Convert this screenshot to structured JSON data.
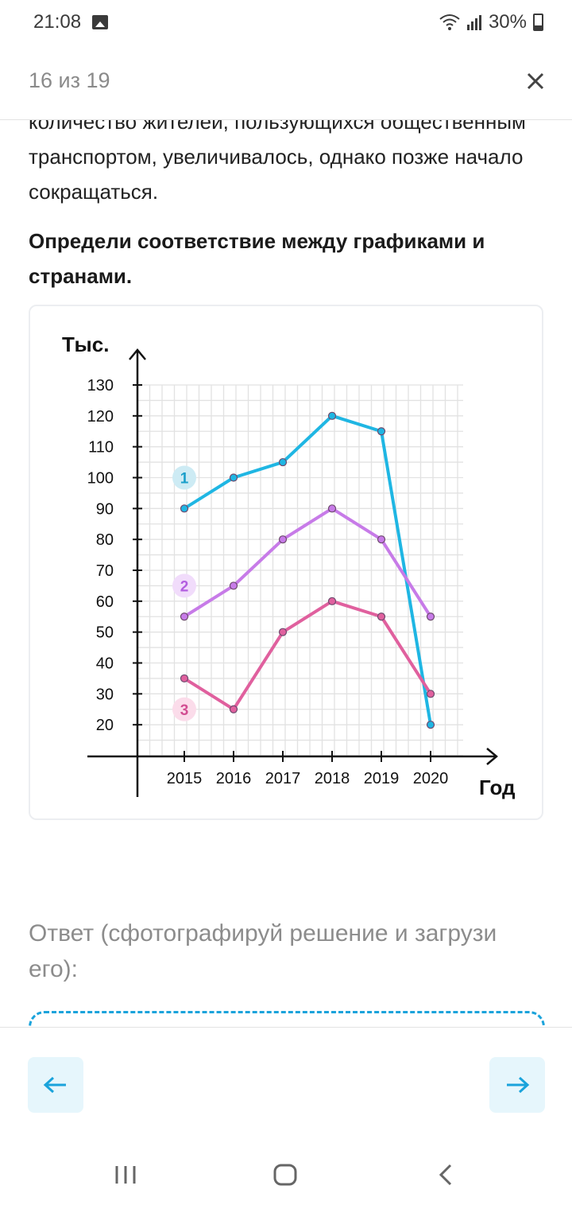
{
  "status_bar": {
    "time": "21:08",
    "battery": "30%",
    "icons": [
      "gallery-icon",
      "wifi-icon",
      "signal-icon",
      "battery-icon"
    ]
  },
  "header": {
    "counter": "16 из 19",
    "close_icon": "close-icon"
  },
  "question": {
    "paragraph_clipped": "количество жителей, пользующихся общественным транспортом, увеличивалось, однако позже начало сокращаться.",
    "task": "Определи соответствие между графиками и странами."
  },
  "chart_data": {
    "type": "line",
    "ylabel": "Тыс.",
    "xlabel": "Год",
    "x": [
      2015,
      2016,
      2017,
      2018,
      2019,
      2020
    ],
    "x_tick_labels": [
      "2015",
      "2016",
      "2017",
      "2018",
      "2019",
      "2020"
    ],
    "y_tick_labels": [
      "130",
      "120",
      "110",
      "100",
      "90",
      "80",
      "70",
      "60",
      "50",
      "40",
      "30",
      "20"
    ],
    "ylim": [
      10,
      130
    ],
    "grid": true,
    "series": [
      {
        "marker": "1",
        "color": "#1fb6e3",
        "values": [
          90,
          100,
          105,
          120,
          115,
          20
        ]
      },
      {
        "marker": "2",
        "color": "#c77be8",
        "values": [
          55,
          65,
          80,
          90,
          80,
          55
        ]
      },
      {
        "marker": "3",
        "color": "#e0609e",
        "values": [
          35,
          25,
          50,
          60,
          55,
          30
        ]
      }
    ]
  },
  "answer": {
    "label": "Ответ (сфотографируй решение и загрузи его):"
  },
  "navigation": {
    "prev_icon": "arrow-left-icon",
    "next_icon": "arrow-right-icon"
  },
  "system_nav": {
    "icons": [
      "recents-icon",
      "home-icon",
      "back-icon"
    ]
  },
  "colors": {
    "accent": "#1aa3db",
    "nav_button_bg": "#e6f6fc",
    "grid": "#e2e2e2"
  }
}
